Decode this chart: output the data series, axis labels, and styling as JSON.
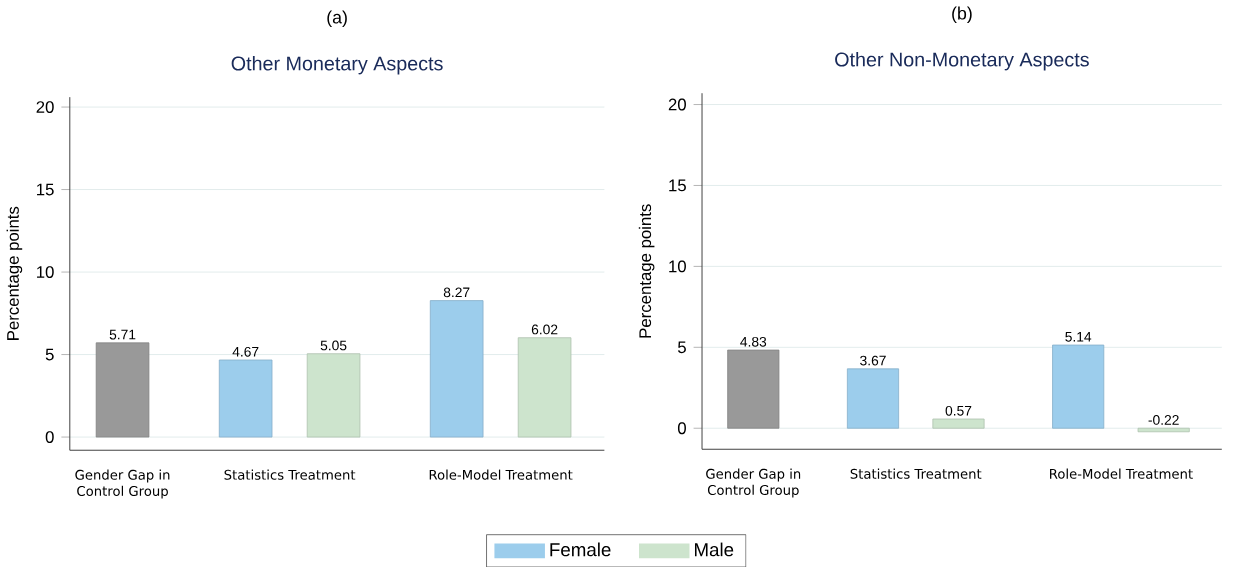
{
  "chart_data": [
    {
      "type": "bar",
      "title": "Other Monetary Aspects",
      "annotations": [
        "(a)"
      ],
      "ylabel": "Percentage points",
      "categories": [
        "Gender Gap in Control Group",
        "Statistics Treatment",
        "Role-Model Treatment"
      ],
      "series": [
        {
          "color": "#999999",
          "values": [
            5.71,
            null,
            null
          ]
        },
        {
          "name": "Female",
          "color": "#9ccdec",
          "values": [
            null,
            4.67,
            8.27
          ]
        },
        {
          "name": "Male",
          "color": "#cde4cd",
          "values": [
            null,
            5.05,
            6.02
          ]
        }
      ],
      "ylim": [
        -0.8,
        20.6
      ],
      "yticks": [
        0,
        5,
        10,
        15,
        20
      ],
      "grid": "y",
      "data_labels": true,
      "legend": "bottom"
    },
    {
      "type": "bar",
      "title": "Other Non-Monetary Aspects",
      "annotations": [
        "(b)"
      ],
      "ylabel": "Percentage points",
      "categories": [
        "Gender Gap in Control Group",
        "Statistics Treatment",
        "Role-Model Treatment"
      ],
      "series": [
        {
          "color": "#999999",
          "values": [
            4.83,
            null,
            null
          ]
        },
        {
          "color": "#9ccdec",
          "values": [
            null,
            3.67,
            5.14
          ]
        },
        {
          "color": "#cde4cd",
          "values": [
            null,
            0.57,
            -0.22
          ]
        }
      ],
      "ylim": [
        -1.3,
        20.7
      ],
      "yticks": [
        0,
        5,
        10,
        15,
        20
      ],
      "grid": "y",
      "data_labels": true
    }
  ]
}
